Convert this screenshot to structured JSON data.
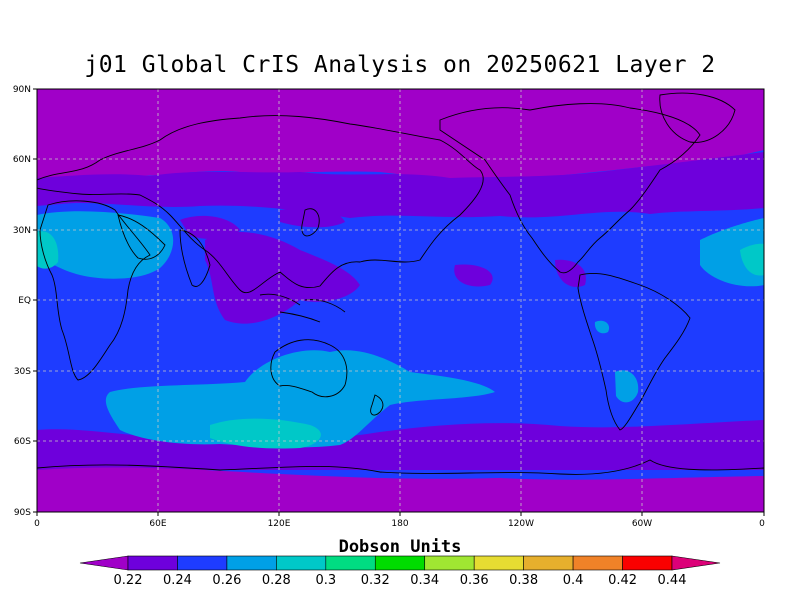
{
  "title": "j01 Global CrIS Analysis on 20250621 Layer 2",
  "map": {
    "lat_labels": [
      "90N",
      "60N",
      "30N",
      "EQ",
      "30S",
      "60S",
      "90S"
    ],
    "lon_labels": [
      "0",
      "60E",
      "120E",
      "180",
      "120W",
      "60W",
      "0"
    ]
  },
  "colorbar": {
    "title": "Dobson Units",
    "tick_labels": [
      "0.22",
      "0.24",
      "0.26",
      "0.28",
      "0.3",
      "0.32",
      "0.34",
      "0.36",
      "0.38",
      "0.4",
      "0.42",
      "0.44"
    ],
    "colors": [
      "#a000c8",
      "#6e00dc",
      "#1e3cff",
      "#00a0e6",
      "#00c8c8",
      "#00dc82",
      "#00dc00",
      "#a0e632",
      "#e6dc32",
      "#e6af2d",
      "#f08228",
      "#fa0000",
      "#dc0078"
    ]
  }
}
